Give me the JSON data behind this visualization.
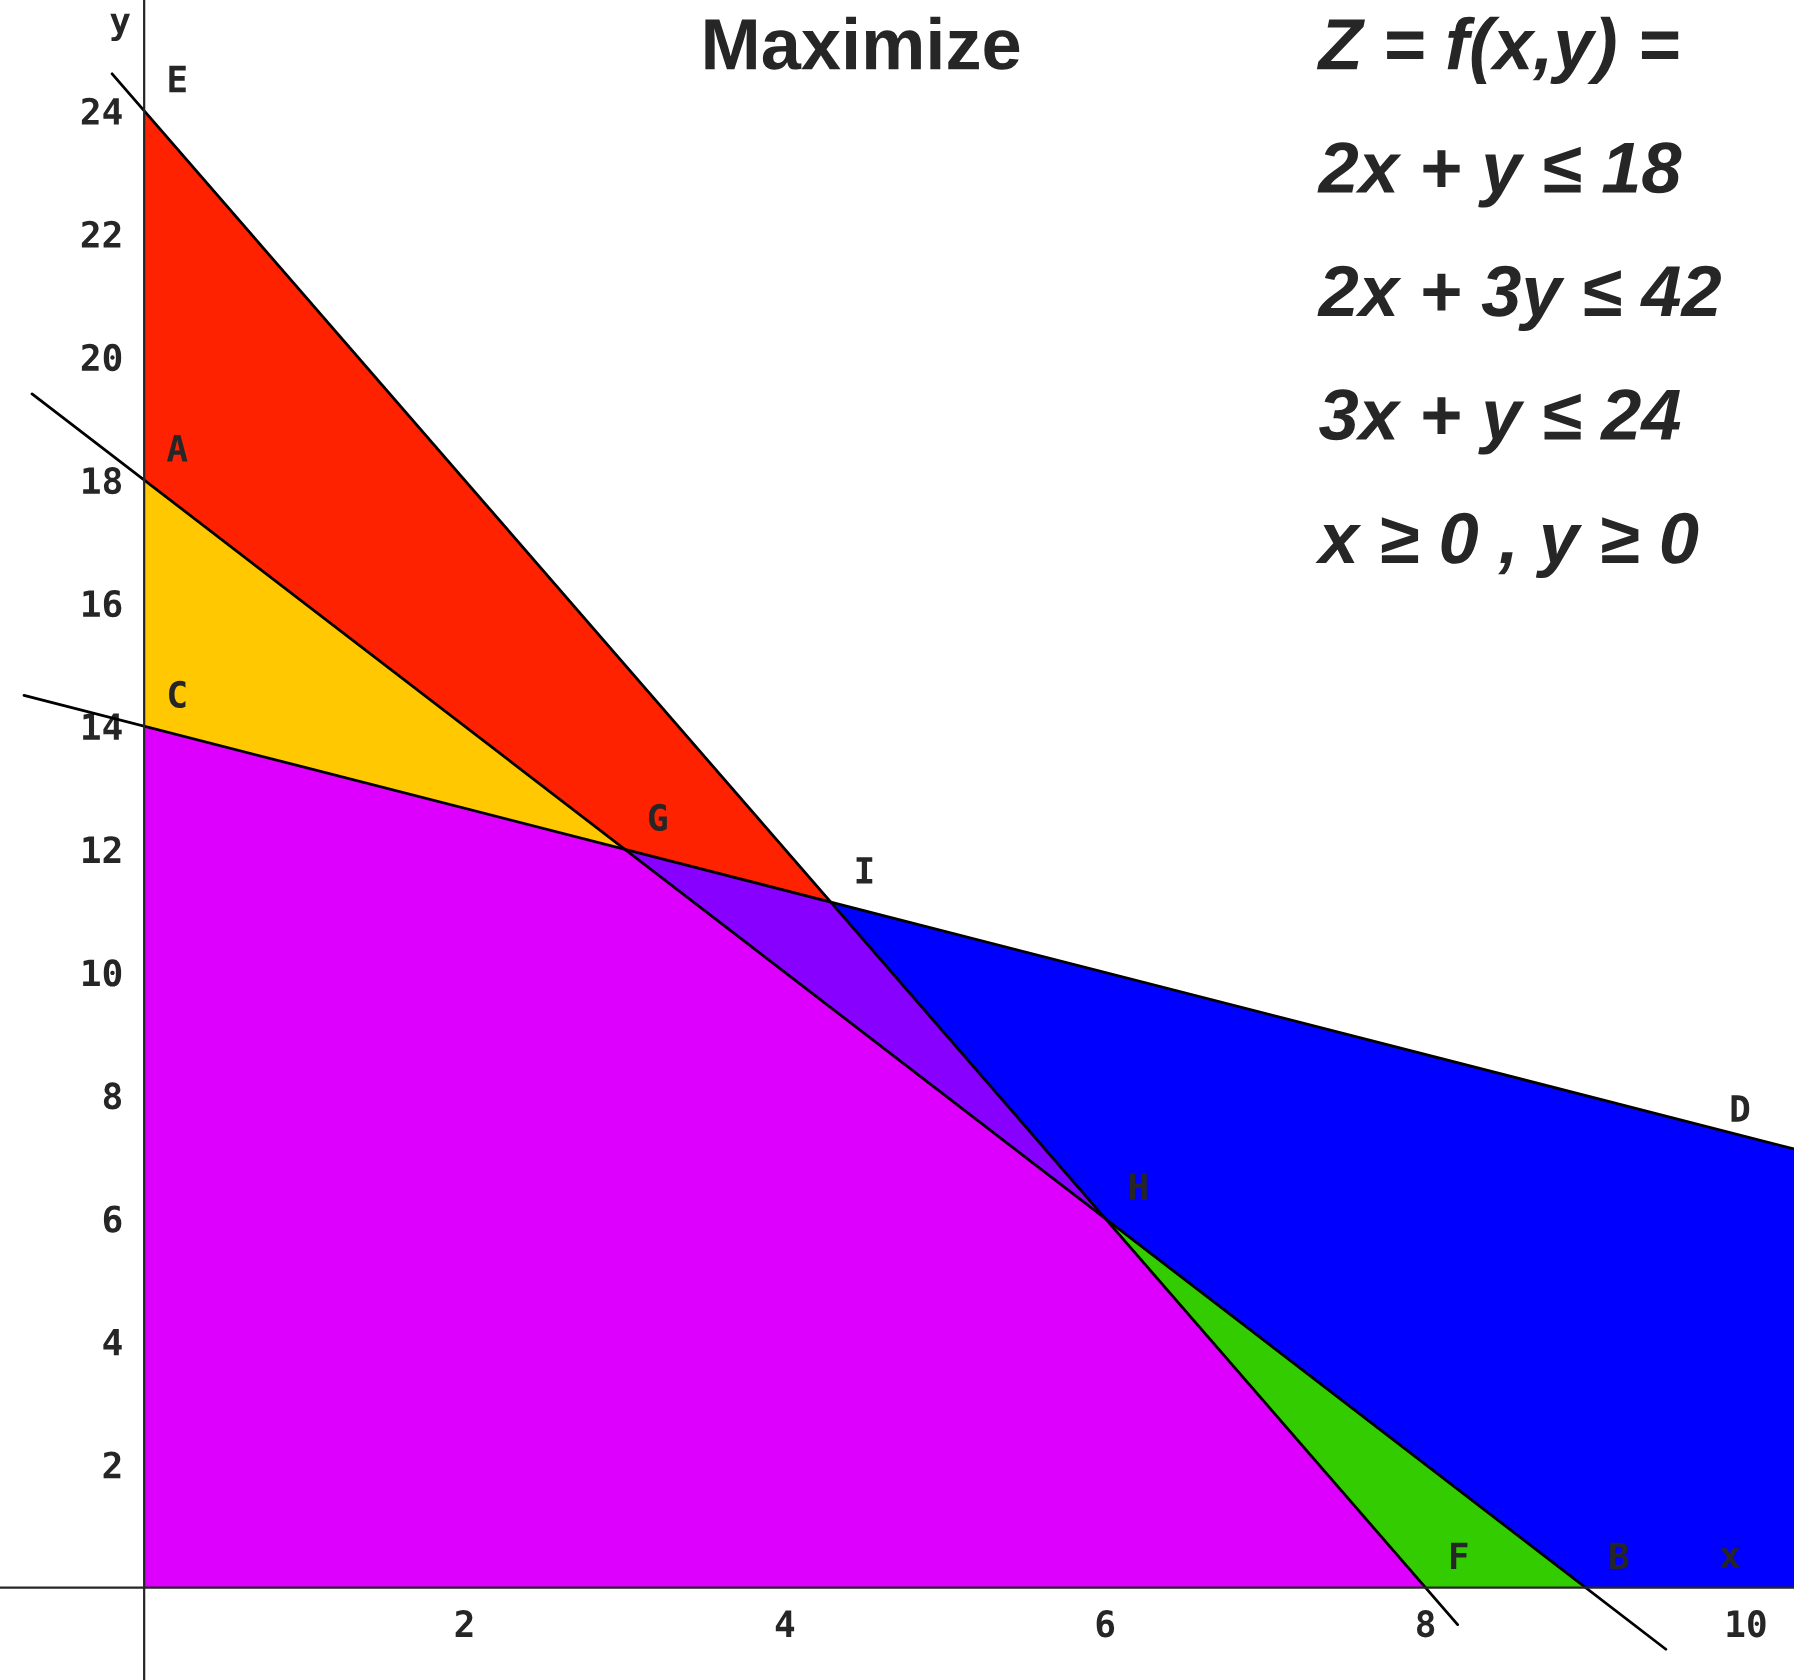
{
  "chart_data": {
    "type": "area",
    "title": "Maximize",
    "xlabel": "x",
    "ylabel": "y",
    "xlim": [
      -0.9,
      10.3
    ],
    "ylim": [
      -1.5,
      25.8
    ],
    "xticks": [
      2,
      4,
      6,
      8,
      10
    ],
    "yticks": [
      2,
      4,
      6,
      8,
      10,
      12,
      14,
      16,
      18,
      20,
      22,
      24
    ],
    "grid": false,
    "series": [
      {
        "color": "#ff2200",
        "x": [
          0,
          4.29
        ],
        "values": [
          24,
          11.14
        ]
      },
      {
        "color": "#0000ff",
        "x": [
          4.29,
          10.3
        ],
        "values": [
          11.14,
          7.13
        ]
      },
      {
        "color": "#ffc800",
        "x": [
          0,
          3
        ],
        "values": [
          18,
          12
        ]
      },
      {
        "color": "#8800ff",
        "x": [
          3,
          4.29,
          6
        ],
        "values": [
          12,
          11.14,
          6
        ]
      },
      {
        "color": "#33cc00",
        "x": [
          6,
          9
        ],
        "values": [
          6,
          0
        ]
      },
      {
        "color": "#dd00ff",
        "x": [
          0,
          3,
          6,
          8
        ],
        "values": [
          14,
          12,
          6,
          0
        ]
      },
      {
        "type": "line",
        "color": "#000000",
        "x": [
          -0.7,
          9.5
        ],
        "values": [
          19.4,
          -1
        ]
      },
      {
        "type": "line",
        "color": "#000000",
        "x": [
          -0.75,
          10.3
        ],
        "values": [
          14.5,
          7.13
        ]
      },
      {
        "type": "line",
        "color": "#000000",
        "x": [
          -0.2,
          8.2
        ],
        "values": [
          24.6,
          -0.6
        ]
      }
    ],
    "annotations": [
      {
        "text": "A",
        "x": 0,
        "y": 18
      },
      {
        "text": "B",
        "x": 9,
        "y": 0
      },
      {
        "text": "C",
        "x": 0,
        "y": 14
      },
      {
        "text": "D",
        "x": 10.1,
        "y": 7.27
      },
      {
        "text": "E",
        "x": 0,
        "y": 24
      },
      {
        "text": "F",
        "x": 8,
        "y": 0
      },
      {
        "text": "G",
        "x": 3,
        "y": 12
      },
      {
        "text": "H",
        "x": 6,
        "y": 6
      },
      {
        "text": "I",
        "x": 4.29,
        "y": 11.14
      },
      "Z = f(x,y) =",
      "2x + y ≤ 18",
      "2x + 3y ≤ 42",
      "3x + y ≤ 24",
      "x ≥ 0 , y ≥ 0"
    ]
  }
}
